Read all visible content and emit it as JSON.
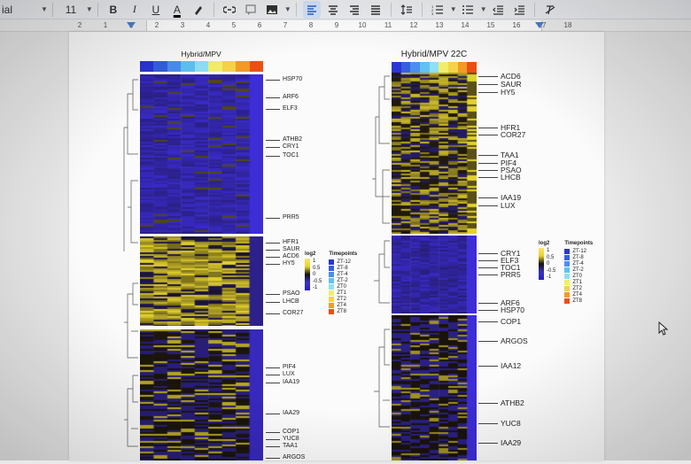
{
  "toolbar": {
    "font_name": "ial",
    "font_size": "11",
    "icons": [
      "bold-icon",
      "italic-icon",
      "underline-icon",
      "text-color-icon",
      "highlight-icon",
      "link-icon",
      "comment-icon",
      "image-icon",
      "align-left-icon",
      "align-center-icon",
      "align-right-icon",
      "align-justify-icon",
      "line-spacing-icon",
      "numbered-list-icon",
      "bulleted-list-icon",
      "decrease-indent-icon",
      "increase-indent-icon",
      "clear-format-icon"
    ],
    "bold_label": "B",
    "italic_label": "I",
    "underline_label": "U",
    "color_label": "A"
  },
  "ruler": {
    "numbers": [
      "2",
      "1",
      "1",
      "2",
      "3",
      "4",
      "5",
      "6",
      "7",
      "8",
      "9",
      "10",
      "11",
      "12",
      "13",
      "14",
      "15",
      "16",
      "17",
      "18"
    ]
  },
  "left_figure": {
    "title": "Hybrid/MPV",
    "timepoint_colors": [
      "#2b35d6",
      "#3460e0",
      "#4a8ef0",
      "#5fc2f2",
      "#8ee0f4",
      "#f2ee6a",
      "#f6d24a",
      "#f39a26",
      "#ec4f14"
    ],
    "block1_genes": [
      "HSP70",
      "ARF6",
      "ELF3",
      "ATHB2",
      "CRY1",
      "TOC1",
      "PRR5"
    ],
    "block2_genes": [
      "HFR1",
      "SAUR",
      "ACD6",
      "HY5",
      "PSAO",
      "LHCB",
      "COR27"
    ],
    "block3_genes": [
      "PIF4",
      "LUX",
      "IAA19",
      "IAA29",
      "COP1",
      "YUC8",
      "TAA1",
      "ARGOS"
    ],
    "legend": {
      "log_title": "log2",
      "log_ticks": [
        "1",
        "0.5",
        "0",
        "-0.5",
        "-1"
      ],
      "tp_title": "Timepoints",
      "tp_labels": [
        "ZT-12",
        "ZT-8",
        "ZT-4",
        "ZT-2",
        "ZT0",
        "ZT1",
        "ZT2",
        "ZT4",
        "ZT8"
      ]
    }
  },
  "right_figure": {
    "title": "Hybrid/MPV 22C",
    "block1_genes": [
      "ACD6",
      "SAUR",
      "HY5",
      "HFR1",
      "COR27",
      "TAA1",
      "PIF4",
      "PSAO",
      "LHCB",
      "IAA19",
      "LUX"
    ],
    "block2_genes": [
      "CRY1",
      "ELF3",
      "TOC1",
      "PRR5",
      "ARF6",
      "HSP70"
    ],
    "block3_genes": [
      "COP1",
      "ARGOS",
      "IAA12",
      "ATHB2",
      "YUC8",
      "IAA29"
    ],
    "legend": {
      "log_title": "log2",
      "log_ticks": [
        "1",
        "0.5",
        "0",
        "-0.5",
        "-1"
      ],
      "tp_title": "Timepoints",
      "tp_labels": [
        "ZT-12",
        "ZT-8",
        "ZT-4",
        "ZT-2",
        "ZT0",
        "ZT1",
        "ZT2",
        "ZT4",
        "ZT8"
      ]
    }
  }
}
